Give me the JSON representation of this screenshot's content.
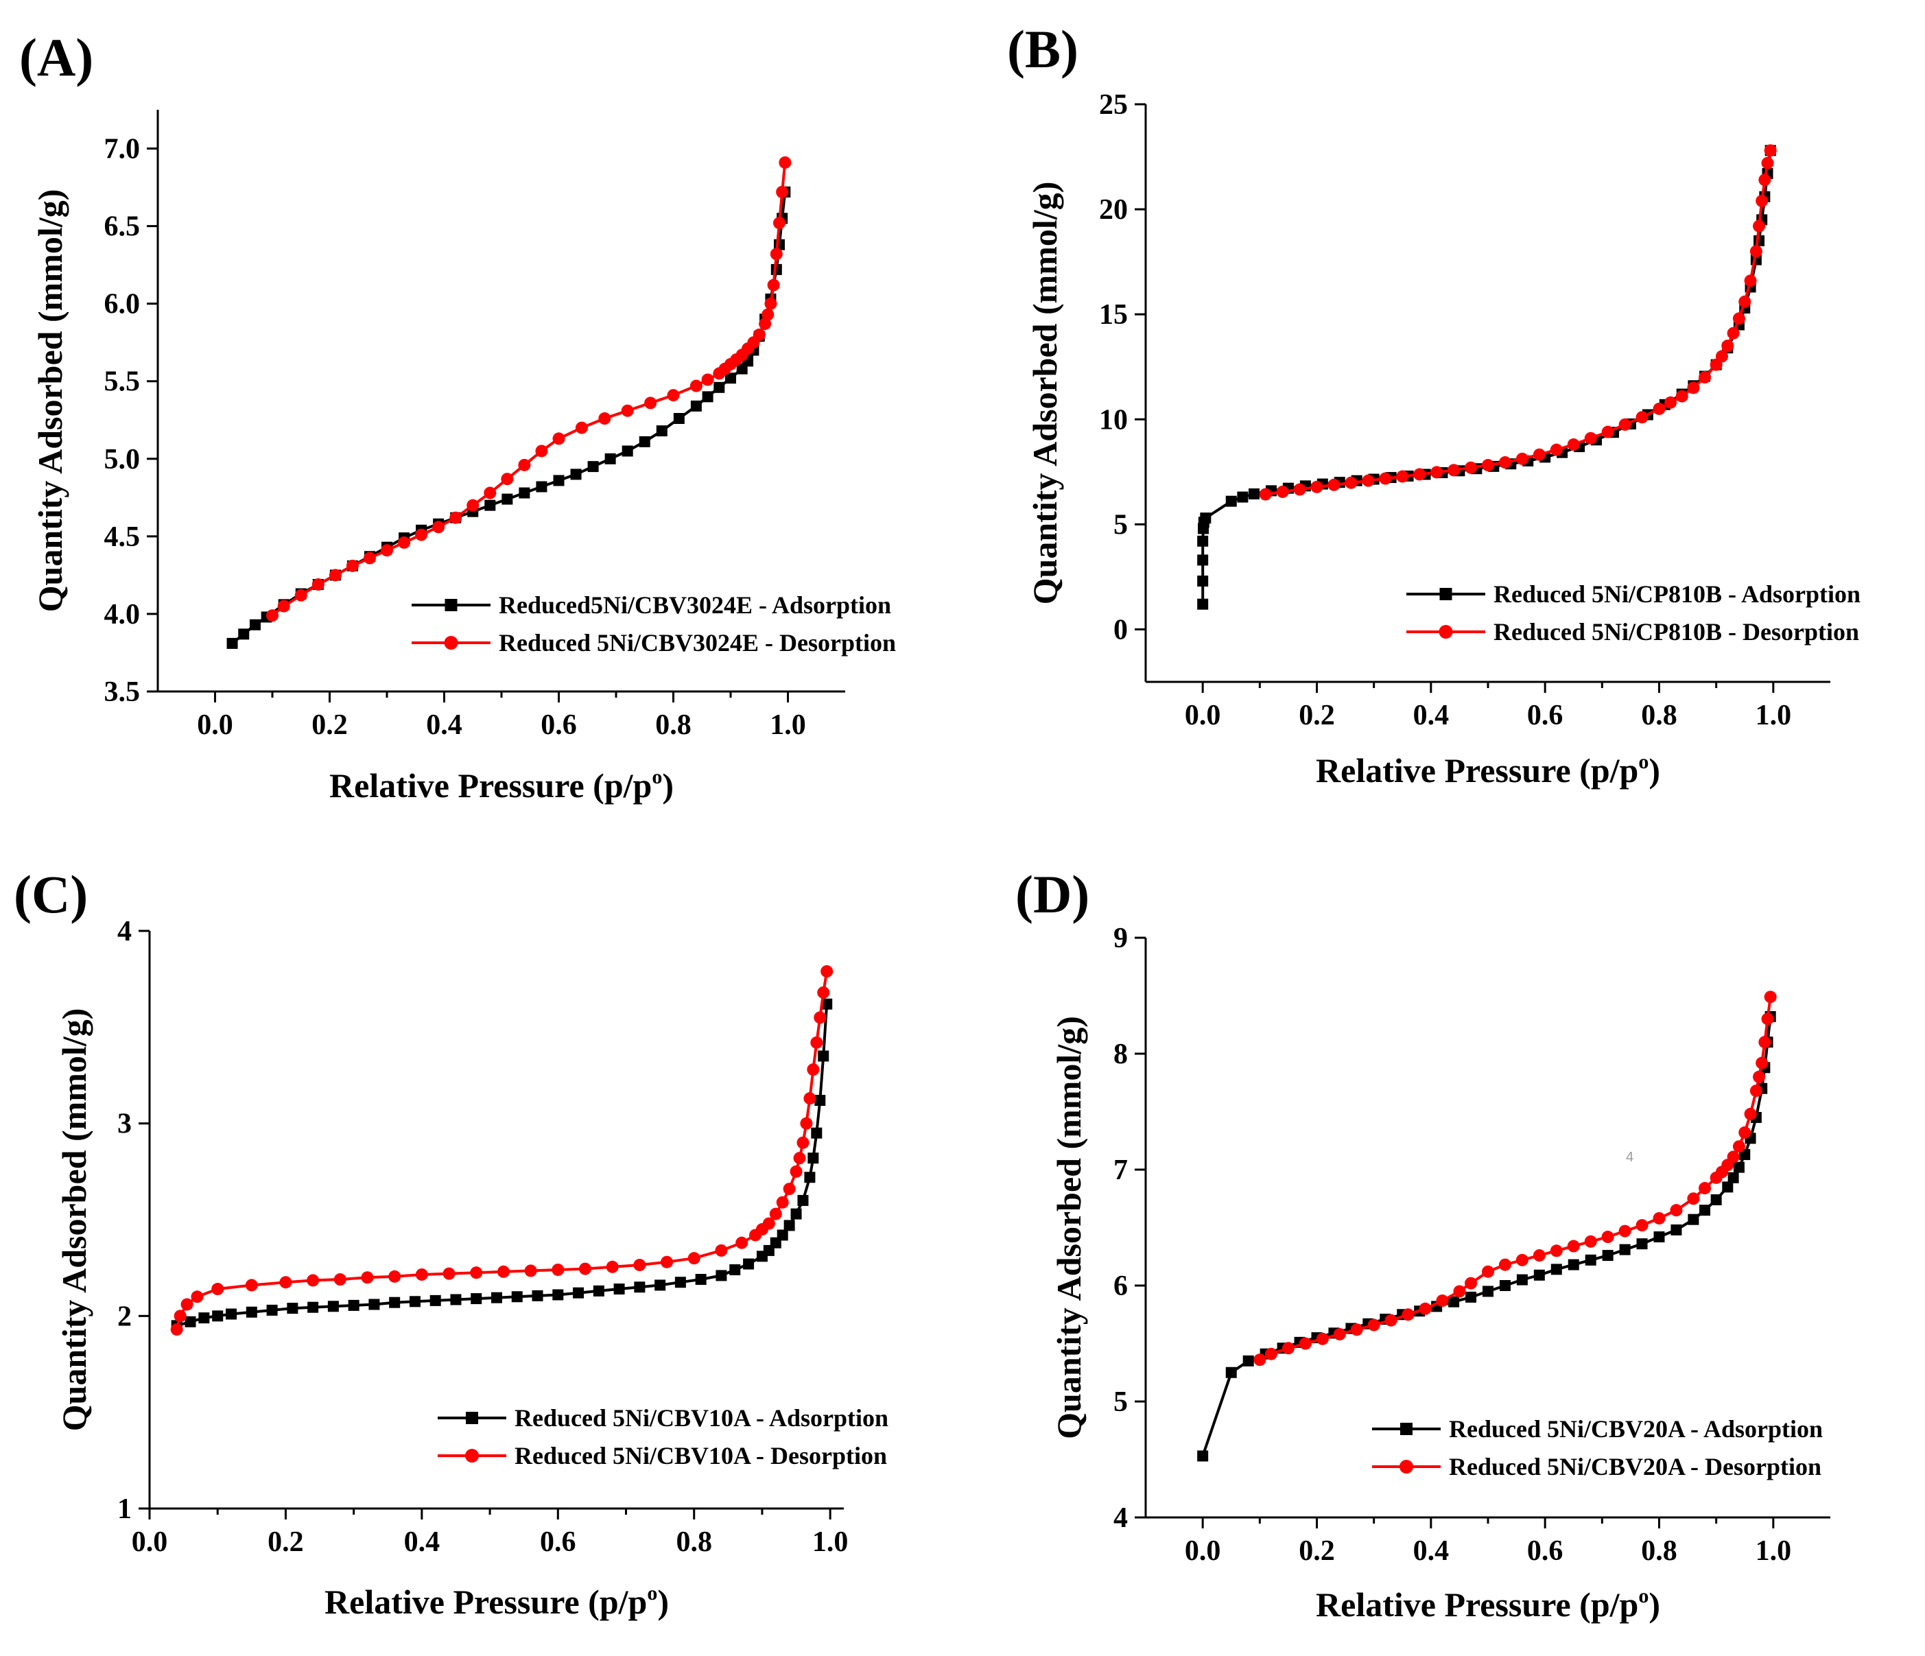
{
  "colors": {
    "adsorption": "#000000",
    "desorption": "#ff0000"
  },
  "chart_data": [
    {
      "type": "line",
      "panel": "(A)",
      "xlabel": "Relative Pressure (p/p",
      "xlabel_sup": "o",
      "xlabel_end": ")",
      "ylabel": "Quantity Adsorbed (mmol/g)",
      "xlim": [
        -0.1,
        1.1
      ],
      "ylim": [
        3.5,
        7.25
      ],
      "xticks": [
        "0.0",
        "0.2",
        "0.4",
        "0.6",
        "0.8",
        "1.0"
      ],
      "yticks": [
        "3.5",
        "4.0",
        "4.5",
        "5.0",
        "5.5",
        "6.0",
        "6.5",
        "7.0"
      ],
      "xtick_values": [
        0,
        0.2,
        0.4,
        0.6,
        0.8,
        1.0
      ],
      "ytick_values": [
        3.5,
        4.0,
        4.5,
        5.0,
        5.5,
        6.0,
        6.5,
        7.0
      ],
      "legend_position": "lower-right",
      "series": [
        {
          "name": "Reduced5Ni/CBV3024E - Adsorption",
          "marker": "square",
          "x": [
            0.03,
            0.05,
            0.07,
            0.09,
            0.12,
            0.15,
            0.18,
            0.21,
            0.24,
            0.27,
            0.3,
            0.33,
            0.36,
            0.39,
            0.42,
            0.45,
            0.48,
            0.51,
            0.54,
            0.57,
            0.6,
            0.63,
            0.66,
            0.69,
            0.72,
            0.75,
            0.78,
            0.81,
            0.84,
            0.86,
            0.88,
            0.9,
            0.92,
            0.93,
            0.94,
            0.95,
            0.96,
            0.97,
            0.98,
            0.985,
            0.99,
            0.995
          ],
          "y": [
            3.81,
            3.87,
            3.93,
            3.98,
            4.06,
            4.13,
            4.19,
            4.25,
            4.31,
            4.37,
            4.43,
            4.49,
            4.54,
            4.58,
            4.62,
            4.66,
            4.7,
            4.74,
            4.78,
            4.82,
            4.86,
            4.9,
            4.95,
            5.0,
            5.05,
            5.11,
            5.18,
            5.26,
            5.34,
            5.4,
            5.46,
            5.52,
            5.58,
            5.63,
            5.7,
            5.79,
            5.9,
            6.03,
            6.22,
            6.38,
            6.55,
            6.72
          ]
        },
        {
          "name": "Reduced 5Ni/CBV3024E - Desorption",
          "marker": "circle",
          "x": [
            0.995,
            0.99,
            0.985,
            0.98,
            0.975,
            0.97,
            0.965,
            0.96,
            0.95,
            0.94,
            0.93,
            0.92,
            0.91,
            0.9,
            0.89,
            0.88,
            0.86,
            0.84,
            0.8,
            0.76,
            0.72,
            0.68,
            0.64,
            0.6,
            0.57,
            0.54,
            0.51,
            0.48,
            0.45,
            0.42,
            0.39,
            0.36,
            0.33,
            0.3,
            0.27,
            0.24,
            0.21,
            0.18,
            0.15,
            0.12,
            0.1
          ],
          "y": [
            6.91,
            6.72,
            6.52,
            6.32,
            6.12,
            6.0,
            5.93,
            5.87,
            5.8,
            5.75,
            5.71,
            5.67,
            5.64,
            5.61,
            5.58,
            5.55,
            5.51,
            5.47,
            5.41,
            5.36,
            5.31,
            5.26,
            5.2,
            5.13,
            5.05,
            4.96,
            4.87,
            4.78,
            4.7,
            4.62,
            4.56,
            4.51,
            4.46,
            4.41,
            4.36,
            4.31,
            4.25,
            4.19,
            4.12,
            4.05,
            3.99
          ]
        }
      ]
    },
    {
      "type": "line",
      "panel": "(B)",
      "xlabel": "Relative Pressure (p/p",
      "xlabel_sup": "o",
      "xlabel_end": ")",
      "ylabel": "Quantity Adsorbed (mmol/g)",
      "xlim": [
        -0.1,
        1.1
      ],
      "ylim": [
        -2.5,
        25
      ],
      "xticks": [
        "0.0",
        "0.2",
        "0.4",
        "0.6",
        "0.8",
        "1.0"
      ],
      "yticks": [
        "0",
        "5",
        "10",
        "15",
        "20",
        "25"
      ],
      "xtick_values": [
        0,
        0.2,
        0.4,
        0.6,
        0.8,
        1.0
      ],
      "ytick_values": [
        0,
        5,
        10,
        15,
        20,
        25
      ],
      "legend_position": "lower-right",
      "series": [
        {
          "name": "Reduced 5Ni/CP810B - Adsorption",
          "marker": "square",
          "x": [
            0.0,
            0.0,
            0.0,
            0.0,
            0.001,
            0.002,
            0.005,
            0.05,
            0.07,
            0.09,
            0.12,
            0.15,
            0.18,
            0.21,
            0.24,
            0.27,
            0.3,
            0.33,
            0.36,
            0.39,
            0.42,
            0.45,
            0.48,
            0.51,
            0.54,
            0.57,
            0.6,
            0.63,
            0.66,
            0.69,
            0.72,
            0.75,
            0.78,
            0.81,
            0.84,
            0.86,
            0.88,
            0.9,
            0.92,
            0.94,
            0.95,
            0.96,
            0.97,
            0.975,
            0.98,
            0.985,
            0.99,
            0.995
          ],
          "y": [
            1.2,
            2.3,
            3.3,
            4.2,
            4.8,
            5.1,
            5.3,
            6.1,
            6.3,
            6.45,
            6.6,
            6.72,
            6.83,
            6.92,
            7.0,
            7.08,
            7.15,
            7.23,
            7.3,
            7.38,
            7.46,
            7.55,
            7.65,
            7.76,
            7.88,
            8.02,
            8.2,
            8.42,
            8.7,
            9.02,
            9.38,
            9.78,
            10.22,
            10.7,
            11.2,
            11.6,
            12.05,
            12.6,
            13.4,
            14.5,
            15.3,
            16.3,
            17.6,
            18.5,
            19.5,
            20.6,
            21.7,
            22.8
          ]
        },
        {
          "name": "Reduced 5Ni/CP810B - Desorption",
          "marker": "circle",
          "x": [
            0.995,
            0.99,
            0.985,
            0.98,
            0.975,
            0.97,
            0.96,
            0.95,
            0.94,
            0.93,
            0.92,
            0.91,
            0.9,
            0.88,
            0.86,
            0.84,
            0.82,
            0.8,
            0.77,
            0.74,
            0.71,
            0.68,
            0.65,
            0.62,
            0.59,
            0.56,
            0.53,
            0.5,
            0.47,
            0.44,
            0.41,
            0.38,
            0.35,
            0.32,
            0.29,
            0.26,
            0.23,
            0.2,
            0.17,
            0.14,
            0.11
          ],
          "y": [
            22.8,
            22.2,
            21.4,
            20.4,
            19.2,
            18.0,
            16.6,
            15.6,
            14.8,
            14.1,
            13.5,
            13.0,
            12.6,
            12.0,
            11.5,
            11.1,
            10.8,
            10.5,
            10.1,
            9.75,
            9.4,
            9.1,
            8.8,
            8.55,
            8.32,
            8.12,
            7.95,
            7.82,
            7.7,
            7.58,
            7.48,
            7.38,
            7.28,
            7.18,
            7.08,
            6.98,
            6.88,
            6.78,
            6.66,
            6.55,
            6.43
          ]
        }
      ]
    },
    {
      "type": "line",
      "panel": "(C)",
      "xlabel": "Relative Pressure (p/p",
      "xlabel_sup": "o",
      "xlabel_end": ")",
      "ylabel": "Quantity Adsorbed (mmol/g)",
      "xlim": [
        0.0,
        1.02
      ],
      "ylim": [
        1,
        4
      ],
      "xticks": [
        "0.0",
        "0.2",
        "0.4",
        "0.6",
        "0.8",
        "1.0"
      ],
      "yticks": [
        "1",
        "2",
        "3",
        "4"
      ],
      "xtick_values": [
        0,
        0.2,
        0.4,
        0.6,
        0.8,
        1.0
      ],
      "ytick_values": [
        1,
        2,
        3,
        4
      ],
      "legend_position": "lower-right",
      "series": [
        {
          "name": "Reduced 5Ni/CBV10A - Adsorption",
          "marker": "square",
          "x": [
            0.04,
            0.06,
            0.08,
            0.1,
            0.12,
            0.15,
            0.18,
            0.21,
            0.24,
            0.27,
            0.3,
            0.33,
            0.36,
            0.39,
            0.42,
            0.45,
            0.48,
            0.51,
            0.54,
            0.57,
            0.6,
            0.63,
            0.66,
            0.69,
            0.72,
            0.75,
            0.78,
            0.81,
            0.84,
            0.86,
            0.88,
            0.9,
            0.91,
            0.92,
            0.93,
            0.94,
            0.95,
            0.96,
            0.97,
            0.975,
            0.98,
            0.985,
            0.99,
            0.995
          ],
          "y": [
            1.95,
            1.97,
            1.99,
            2.0,
            2.01,
            2.02,
            2.03,
            2.04,
            2.045,
            2.05,
            2.055,
            2.06,
            2.07,
            2.075,
            2.08,
            2.085,
            2.09,
            2.095,
            2.1,
            2.105,
            2.11,
            2.12,
            2.13,
            2.14,
            2.15,
            2.16,
            2.175,
            2.19,
            2.21,
            2.24,
            2.27,
            2.31,
            2.34,
            2.38,
            2.42,
            2.47,
            2.53,
            2.6,
            2.72,
            2.82,
            2.95,
            3.12,
            3.35,
            3.62
          ]
        },
        {
          "name": "Reduced 5Ni/CBV10A - Desorption",
          "marker": "circle",
          "x": [
            0.995,
            0.99,
            0.985,
            0.98,
            0.975,
            0.97,
            0.965,
            0.96,
            0.955,
            0.95,
            0.94,
            0.93,
            0.92,
            0.91,
            0.9,
            0.89,
            0.87,
            0.84,
            0.8,
            0.76,
            0.72,
            0.68,
            0.64,
            0.6,
            0.56,
            0.52,
            0.48,
            0.44,
            0.4,
            0.36,
            0.32,
            0.28,
            0.24,
            0.2,
            0.15,
            0.1,
            0.07,
            0.055,
            0.045,
            0.04
          ],
          "y": [
            3.79,
            3.68,
            3.55,
            3.42,
            3.28,
            3.13,
            3.0,
            2.9,
            2.82,
            2.75,
            2.66,
            2.59,
            2.53,
            2.48,
            2.45,
            2.42,
            2.38,
            2.34,
            2.3,
            2.28,
            2.265,
            2.255,
            2.245,
            2.24,
            2.235,
            2.23,
            2.225,
            2.22,
            2.215,
            2.205,
            2.2,
            2.19,
            2.185,
            2.175,
            2.16,
            2.14,
            2.1,
            2.06,
            2.0,
            1.93
          ]
        }
      ]
    },
    {
      "type": "line",
      "panel": "(D)",
      "xlabel": "Relative Pressure (p/p",
      "xlabel_sup": "o",
      "xlabel_end": ")",
      "ylabel": "Quantity Adsorbed (mmol/g)",
      "xlim": [
        -0.1,
        1.1
      ],
      "ylim": [
        4,
        9
      ],
      "xticks": [
        "0.0",
        "0.2",
        "0.4",
        "0.6",
        "0.8",
        "1.0"
      ],
      "yticks": [
        "4",
        "5",
        "6",
        "7",
        "8",
        "9"
      ],
      "xtick_values": [
        0,
        0.2,
        0.4,
        0.6,
        0.8,
        1.0
      ],
      "ytick_values": [
        4,
        5,
        6,
        7,
        8,
        9
      ],
      "legend_position": "lower-right",
      "annotation": "4",
      "series": [
        {
          "name": "Reduced 5Ni/CBV20A - Adsorption",
          "marker": "square",
          "x": [
            0.0,
            0.05,
            0.08,
            0.11,
            0.14,
            0.17,
            0.2,
            0.23,
            0.26,
            0.29,
            0.32,
            0.35,
            0.38,
            0.41,
            0.44,
            0.47,
            0.5,
            0.53,
            0.56,
            0.59,
            0.62,
            0.65,
            0.68,
            0.71,
            0.74,
            0.77,
            0.8,
            0.83,
            0.86,
            0.88,
            0.9,
            0.92,
            0.93,
            0.94,
            0.95,
            0.96,
            0.97,
            0.98,
            0.985,
            0.99,
            0.995
          ],
          "y": [
            4.53,
            5.25,
            5.35,
            5.41,
            5.46,
            5.51,
            5.55,
            5.59,
            5.63,
            5.67,
            5.71,
            5.75,
            5.78,
            5.82,
            5.86,
            5.9,
            5.95,
            6.0,
            6.05,
            6.09,
            6.14,
            6.18,
            6.22,
            6.26,
            6.31,
            6.36,
            6.42,
            6.48,
            6.57,
            6.65,
            6.74,
            6.85,
            6.93,
            7.02,
            7.13,
            7.27,
            7.45,
            7.7,
            7.88,
            8.1,
            8.32
          ]
        },
        {
          "name": "Reduced 5Ni/CBV20A - Desorption",
          "marker": "circle",
          "x": [
            0.995,
            0.99,
            0.985,
            0.98,
            0.975,
            0.97,
            0.96,
            0.95,
            0.94,
            0.93,
            0.92,
            0.91,
            0.9,
            0.88,
            0.86,
            0.83,
            0.8,
            0.77,
            0.74,
            0.71,
            0.68,
            0.65,
            0.62,
            0.59,
            0.56,
            0.53,
            0.5,
            0.47,
            0.45,
            0.42,
            0.39,
            0.36,
            0.33,
            0.3,
            0.27,
            0.24,
            0.21,
            0.18,
            0.15,
            0.12,
            0.1
          ],
          "y": [
            8.49,
            8.3,
            8.1,
            7.92,
            7.8,
            7.68,
            7.48,
            7.32,
            7.2,
            7.11,
            7.04,
            6.98,
            6.93,
            6.84,
            6.75,
            6.65,
            6.58,
            6.52,
            6.47,
            6.42,
            6.38,
            6.34,
            6.3,
            6.26,
            6.22,
            6.18,
            6.12,
            6.02,
            5.95,
            5.87,
            5.8,
            5.75,
            5.7,
            5.66,
            5.62,
            5.58,
            5.54,
            5.5,
            5.46,
            5.41,
            5.36
          ]
        }
      ]
    }
  ]
}
